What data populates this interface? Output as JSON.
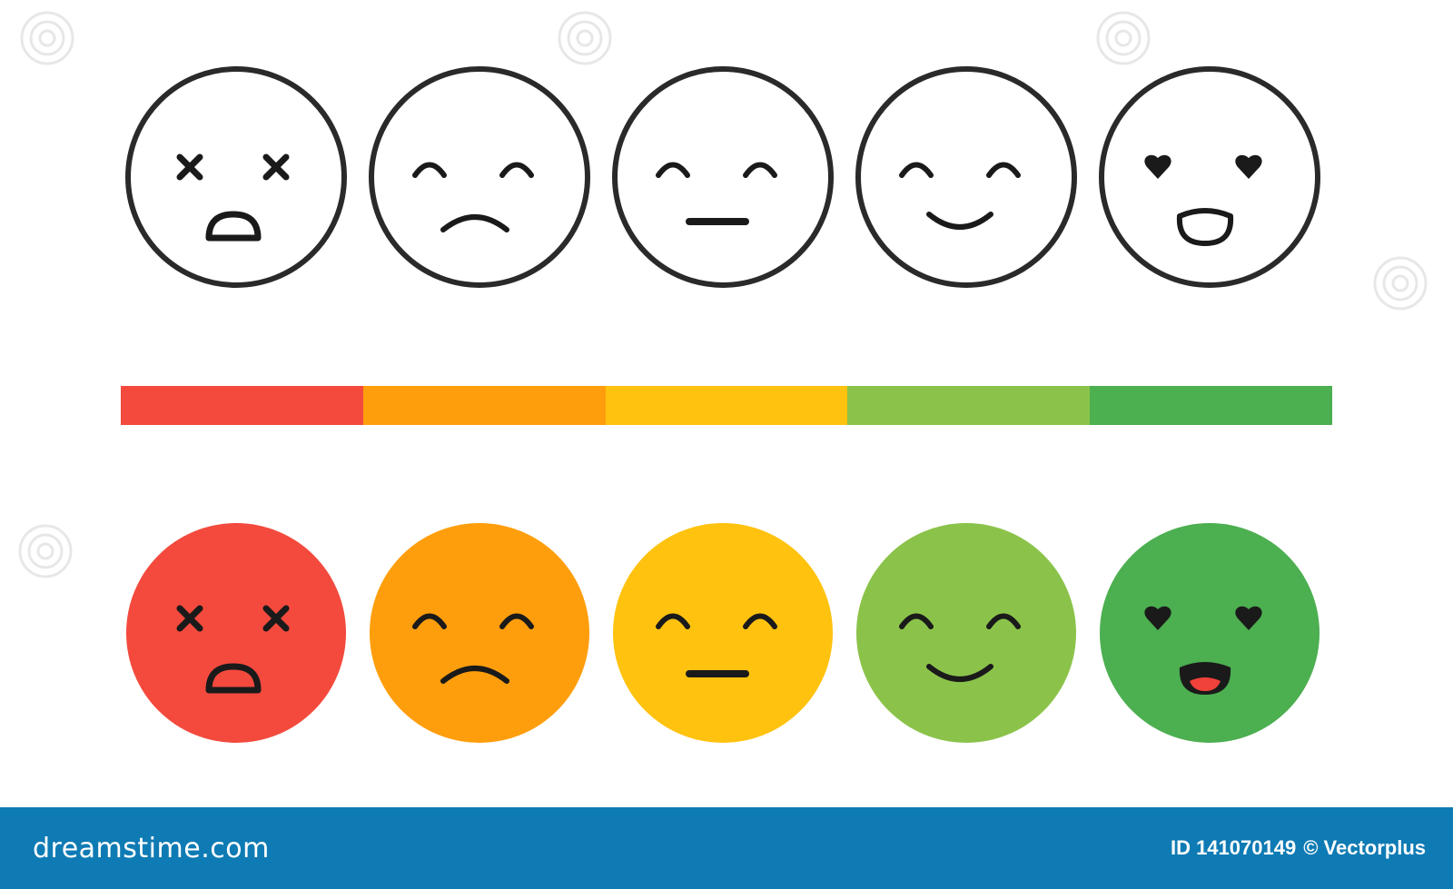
{
  "colors": {
    "outline_stroke": "#2a2a2a",
    "feature": "#1a1a1a",
    "mouth_open_fill_outline": "#ffffff",
    "tongue": "#f0413a",
    "footer_bg": "#0f7bb4",
    "footer_text": "#ffffff"
  },
  "ratings": [
    {
      "level": 1,
      "mood": "dead-shocked",
      "eyes": "cross",
      "mouth": "open",
      "color": "#f34a3d"
    },
    {
      "level": 2,
      "mood": "sad",
      "eyes": "closed-arc",
      "mouth": "frown",
      "color": "#ff9e0c"
    },
    {
      "level": 3,
      "mood": "neutral",
      "eyes": "closed-arc",
      "mouth": "flat",
      "color": "#ffc20f"
    },
    {
      "level": 4,
      "mood": "happy",
      "eyes": "closed-arc",
      "mouth": "smile",
      "color": "#8bc34a"
    },
    {
      "level": 5,
      "mood": "in-love",
      "eyes": "heart",
      "mouth": "open-tongue",
      "color": "#4caf50"
    }
  ],
  "footer": {
    "brand": "dreamstime.com",
    "image_id": "ID 141070149",
    "credit": "© Vectorplus"
  }
}
